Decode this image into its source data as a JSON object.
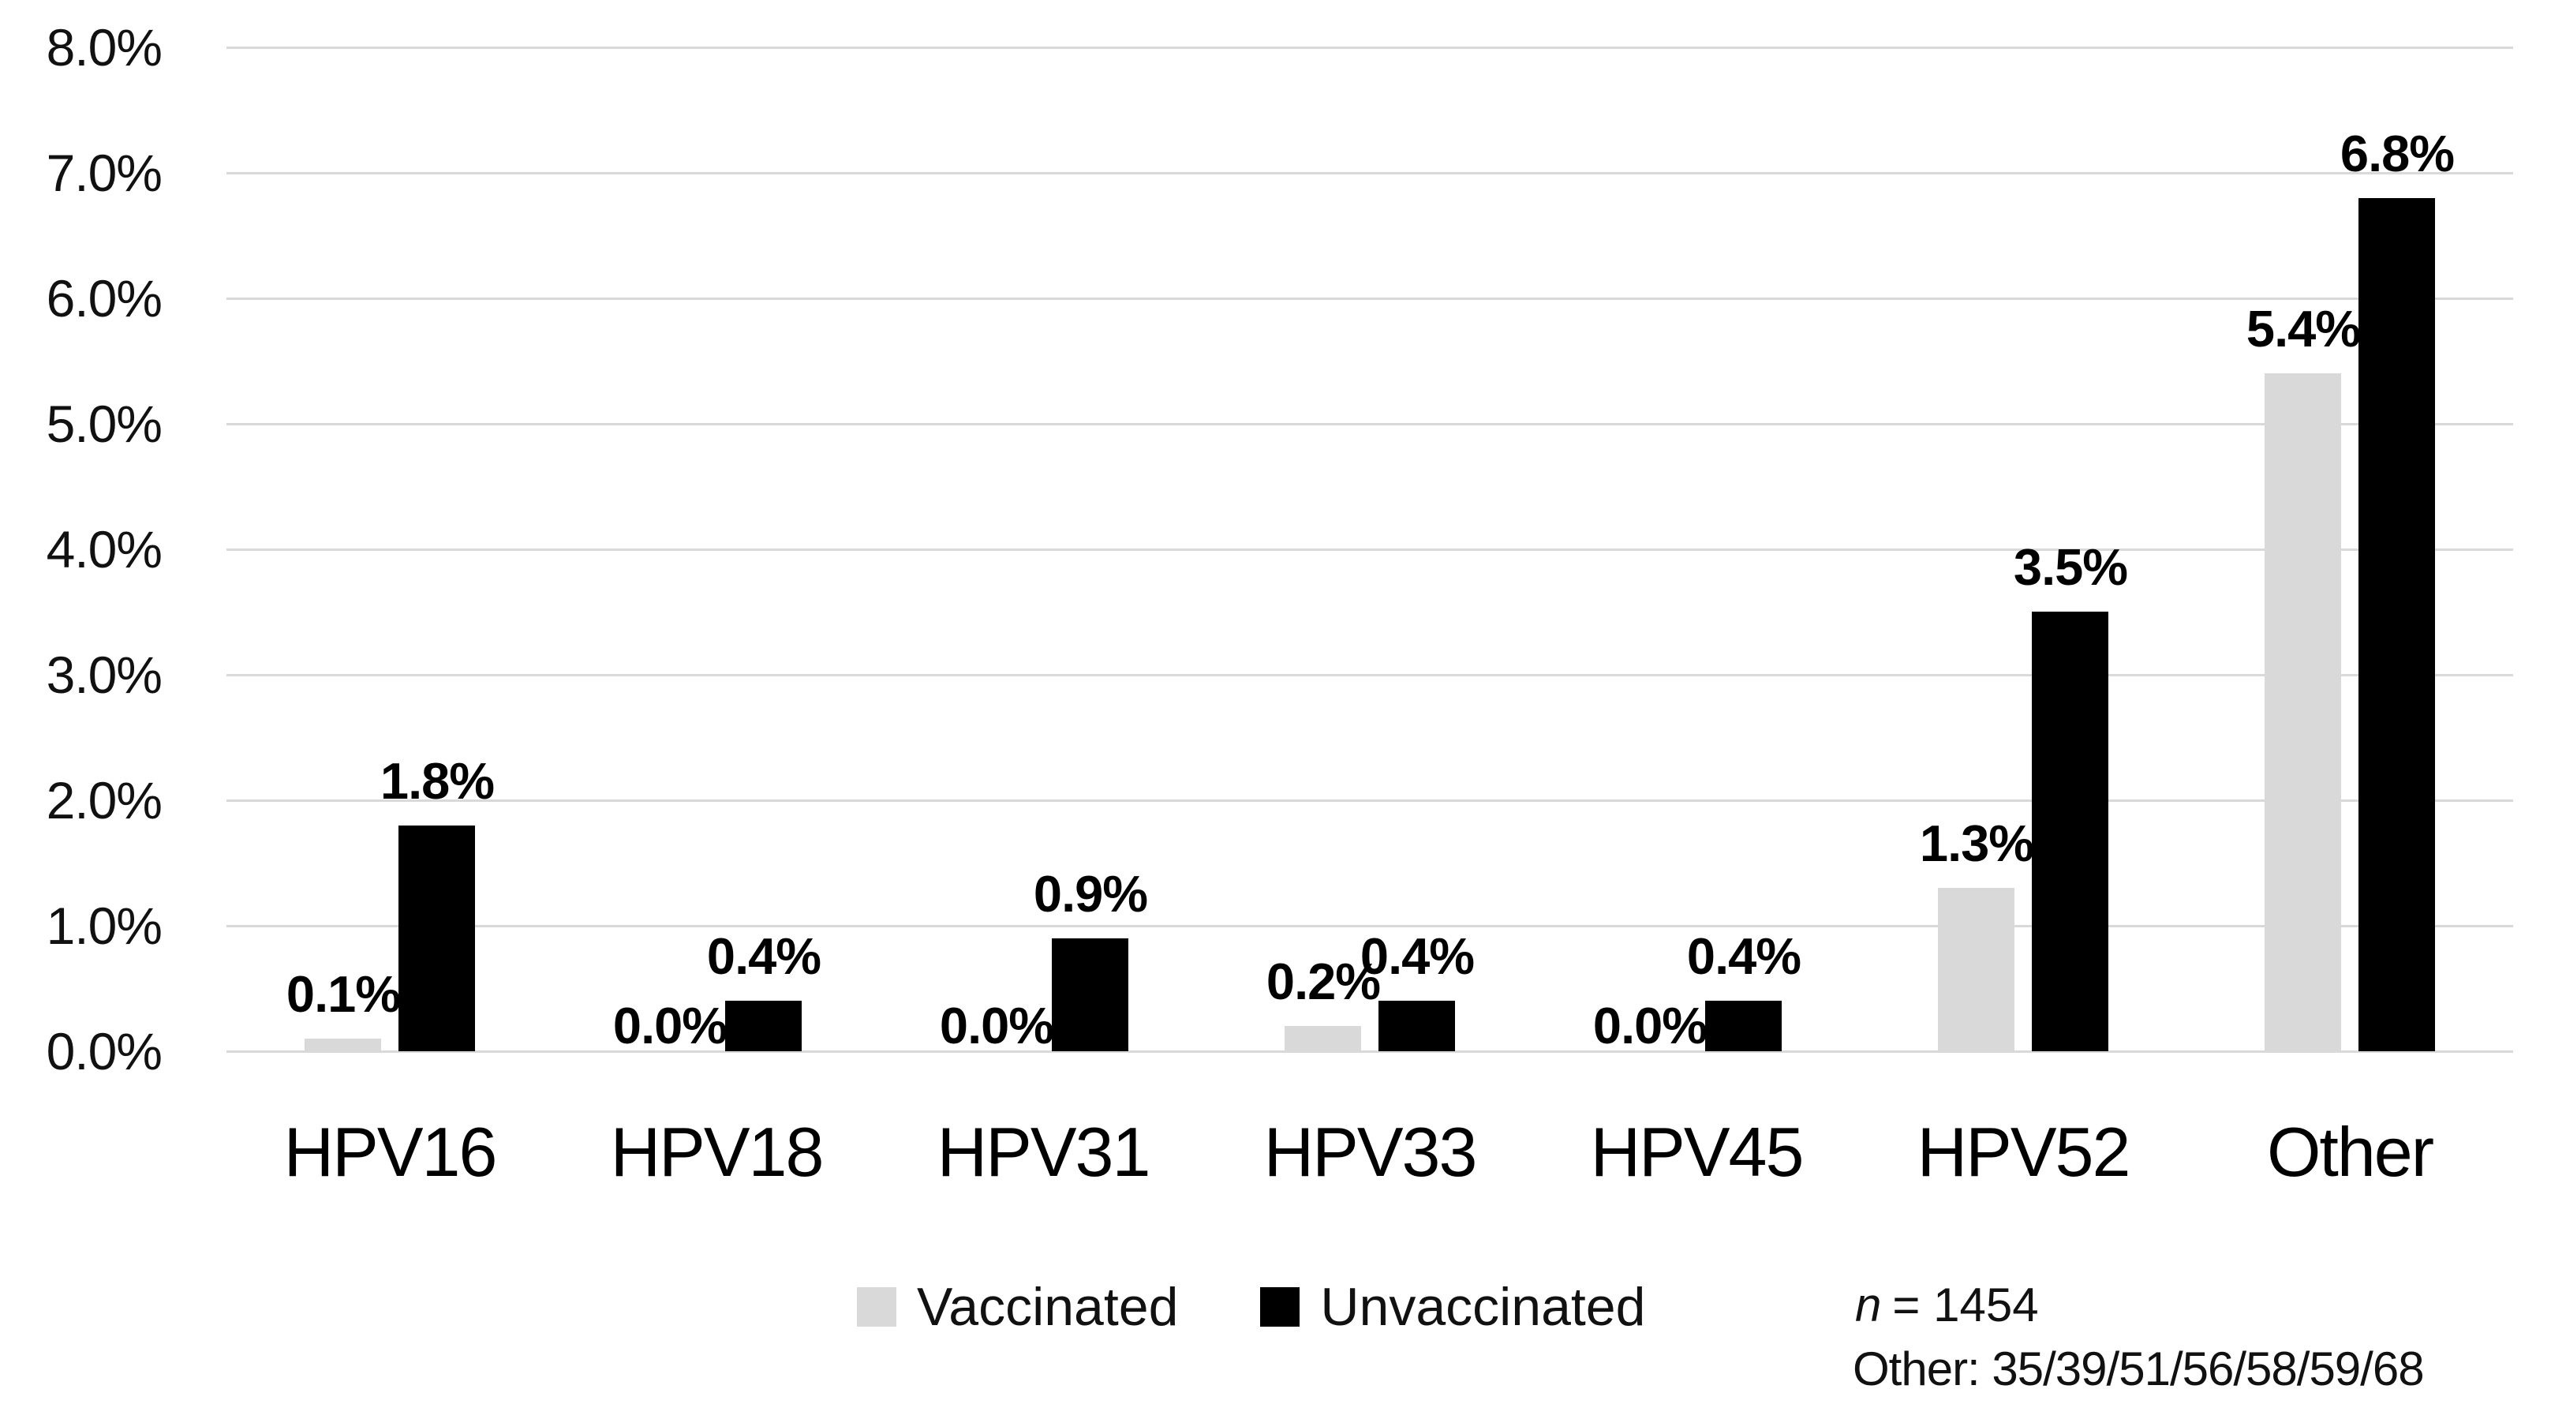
{
  "chart_data": {
    "type": "bar",
    "title": "",
    "xlabel": "",
    "ylabel": "",
    "categories": [
      "HPV16",
      "HPV18",
      "HPV31",
      "HPV33",
      "HPV45",
      "HPV52",
      "Other"
    ],
    "series": [
      {
        "name": "Vaccinated",
        "color": "#d9d9d9",
        "values": [
          0.1,
          0.0,
          0.0,
          0.2,
          0.0,
          1.3,
          5.4
        ],
        "labels": [
          "0.1%",
          "0.0%",
          "0.0%",
          "0.2%",
          "0.0%",
          "1.3%",
          "5.4%"
        ]
      },
      {
        "name": "Unvaccinated",
        "color": "#000000",
        "values": [
          1.8,
          0.4,
          0.9,
          0.4,
          0.4,
          3.5,
          6.8
        ],
        "labels": [
          "1.8%",
          "0.4%",
          "0.9%",
          "0.4%",
          "0.4%",
          "3.5%",
          "6.8%"
        ]
      }
    ],
    "ylim": [
      0,
      8
    ],
    "ytick_step": 1,
    "ytick_labels": [
      "0.0%",
      "1.0%",
      "2.0%",
      "3.0%",
      "4.0%",
      "5.0%",
      "6.0%",
      "7.0%",
      "8.0%"
    ],
    "grid": true,
    "gridline_color": "#d9d9d9",
    "legend_position": "bottom",
    "background_color": "#ffffff"
  },
  "legend": {
    "items": [
      {
        "label": "Vaccinated",
        "color": "#d9d9d9"
      },
      {
        "label": "Unvaccinated",
        "color": "#000000"
      }
    ]
  },
  "notes": {
    "n_symbol": "n",
    "n_rest": "= 1454",
    "other_definition": "Other: 35/39/51/56/58/59/68"
  }
}
